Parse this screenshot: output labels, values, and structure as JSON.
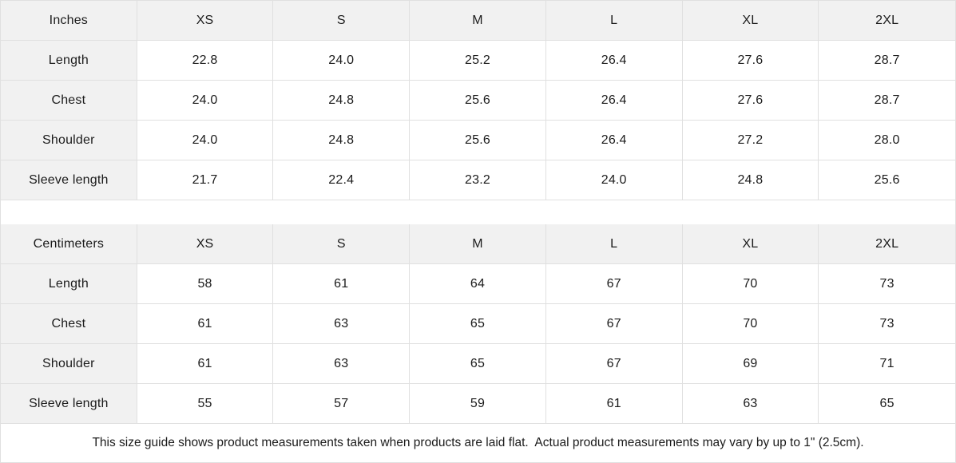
{
  "colors": {
    "header_bg": "#f1f1f1",
    "label_column_bg": "#f1f1f1",
    "border": "#e0e0e0",
    "text": "#1b1b1b",
    "background": "#ffffff"
  },
  "size_guide": {
    "tables": [
      {
        "id": "inches",
        "unit_label": "Inches",
        "columns": [
          "XS",
          "S",
          "M",
          "L",
          "XL",
          "2XL"
        ],
        "rows": [
          {
            "label": "Length",
            "values": [
              "22.8",
              "24.0",
              "25.2",
              "26.4",
              "27.6",
              "28.7"
            ]
          },
          {
            "label": "Chest",
            "values": [
              "24.0",
              "24.8",
              "25.6",
              "26.4",
              "27.6",
              "28.7"
            ]
          },
          {
            "label": "Shoulder",
            "values": [
              "24.0",
              "24.8",
              "25.6",
              "26.4",
              "27.2",
              "28.0"
            ]
          },
          {
            "label": "Sleeve length",
            "values": [
              "21.7",
              "22.4",
              "23.2",
              "24.0",
              "24.8",
              "25.6"
            ]
          }
        ]
      },
      {
        "id": "centimeters",
        "unit_label": "Centimeters",
        "columns": [
          "XS",
          "S",
          "M",
          "L",
          "XL",
          "2XL"
        ],
        "rows": [
          {
            "label": "Length",
            "values": [
              "58",
              "61",
              "64",
              "67",
              "70",
              "73"
            ]
          },
          {
            "label": "Chest",
            "values": [
              "61",
              "63",
              "65",
              "67",
              "70",
              "73"
            ]
          },
          {
            "label": "Shoulder",
            "values": [
              "61",
              "63",
              "65",
              "67",
              "69",
              "71"
            ]
          },
          {
            "label": "Sleeve length",
            "values": [
              "55",
              "57",
              "59",
              "61",
              "63",
              "65"
            ]
          }
        ]
      }
    ],
    "footnote": "This size guide shows product measurements taken when products are laid flat.  Actual product measurements may vary by up to 1\" (2.5cm)."
  },
  "chart_data": [
    {
      "type": "table",
      "title": "Inches",
      "columns": [
        "Inches",
        "XS",
        "S",
        "M",
        "L",
        "XL",
        "2XL"
      ],
      "rows": [
        [
          "Length",
          22.8,
          24.0,
          25.2,
          26.4,
          27.6,
          28.7
        ],
        [
          "Chest",
          24.0,
          24.8,
          25.6,
          26.4,
          27.6,
          28.7
        ],
        [
          "Shoulder",
          24.0,
          24.8,
          25.6,
          26.4,
          27.2,
          28.0
        ],
        [
          "Sleeve length",
          21.7,
          22.4,
          23.2,
          24.0,
          24.8,
          25.6
        ]
      ]
    },
    {
      "type": "table",
      "title": "Centimeters",
      "columns": [
        "Centimeters",
        "XS",
        "S",
        "M",
        "L",
        "XL",
        "2XL"
      ],
      "rows": [
        [
          "Length",
          58,
          61,
          64,
          67,
          70,
          73
        ],
        [
          "Chest",
          61,
          63,
          65,
          67,
          70,
          73
        ],
        [
          "Shoulder",
          61,
          63,
          65,
          67,
          69,
          71
        ],
        [
          "Sleeve length",
          55,
          57,
          59,
          61,
          63,
          65
        ]
      ]
    }
  ]
}
